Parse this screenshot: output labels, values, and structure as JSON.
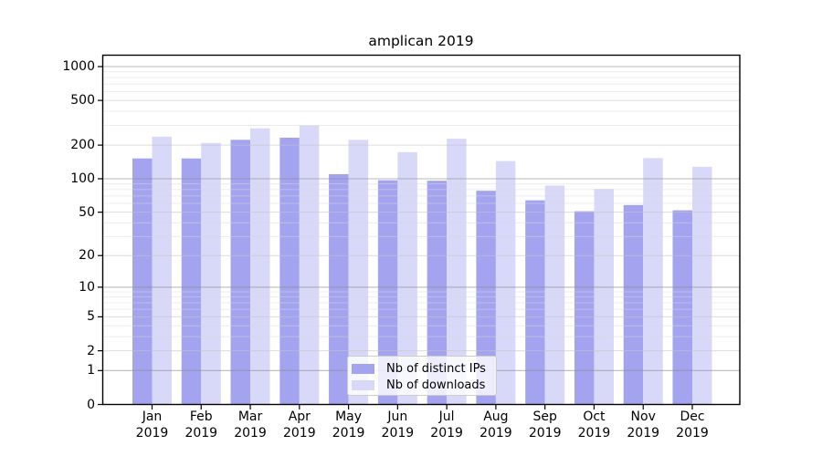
{
  "chart_data": {
    "type": "bar",
    "title": "amplican 2019",
    "scale": "log1p",
    "grid": true,
    "xlabel": "",
    "ylabel": "",
    "year": "2019",
    "categories": [
      "Jan",
      "Feb",
      "Mar",
      "Apr",
      "May",
      "Jun",
      "Jul",
      "Aug",
      "Sep",
      "Oct",
      "Nov",
      "Dec"
    ],
    "series": [
      {
        "name": "Nb of distinct IPs",
        "color": "#a3a3f0",
        "values": [
          152,
          152,
          223,
          233,
          110,
          97,
          96,
          78,
          64,
          51,
          58,
          52
        ]
      },
      {
        "name": "Nb of downloads",
        "color": "#d8d8f8",
        "values": [
          238,
          209,
          282,
          300,
          223,
          173,
          228,
          144,
          87,
          81,
          153,
          128
        ]
      }
    ],
    "yticks": [
      0,
      1,
      2,
      5,
      10,
      20,
      50,
      100,
      200,
      500,
      1000
    ],
    "ylim": [
      0,
      1260
    ],
    "legend_position": "lower center"
  }
}
